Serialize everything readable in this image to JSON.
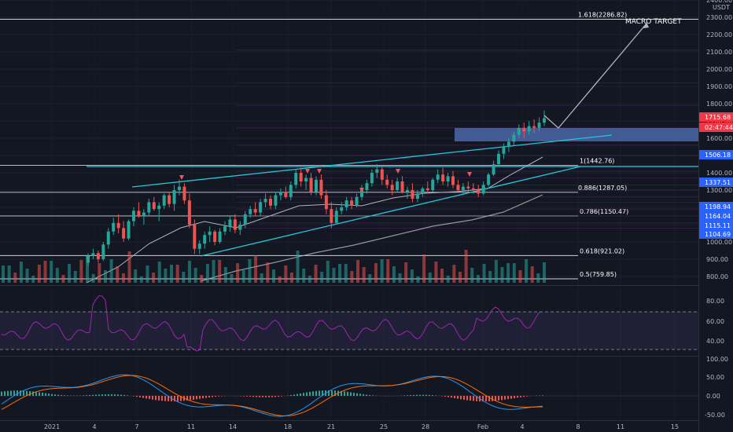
{
  "chart_data": {
    "type": "candlestick",
    "quote_unit": "USDT",
    "price_axis": {
      "ticks": [
        2400,
        2300,
        2200,
        2100,
        2000,
        1900,
        1800,
        1700,
        1600,
        1500,
        1400,
        1300,
        1200,
        1100,
        1000,
        900,
        800
      ],
      "labels": [
        "2400.00",
        "2300.00",
        "2200.00",
        "2100.00",
        "2000.00",
        "1900.00",
        "1800.00",
        "1700.00",
        "1600.00",
        "1500.00",
        "1400.00",
        "1300.00",
        "1200.00",
        "1100.00",
        "1000.00",
        "900.00",
        "800.00"
      ],
      "range": [
        780,
        2400
      ]
    },
    "price_tags": [
      {
        "value": 1715.68,
        "label": "1715.68",
        "color": "#f23645"
      },
      {
        "value": 1680,
        "label": "02:47:44",
        "color": "#f23645"
      },
      {
        "value": 1506.18,
        "label": "1506.18",
        "color": "#2962ff"
      },
      {
        "value": 1337.51,
        "label": "1337.51",
        "color": "#2962ff"
      },
      {
        "value": 1198.94,
        "label": "1198.94",
        "color": "#2962ff"
      },
      {
        "value": 1164.04,
        "label": "1164.04",
        "color": "#2962ff"
      },
      {
        "value": 1115.11,
        "label": "1115.11",
        "color": "#2962ff"
      },
      {
        "value": 1104.69,
        "label": "1104.69",
        "color": "#2962ff"
      }
    ],
    "time_axis": {
      "labels": [
        "2021",
        "4",
        "7",
        "11",
        "14",
        "18",
        "21",
        "25",
        "28",
        "Feb",
        "4",
        "8",
        "11",
        "15"
      ]
    },
    "fib_levels": [
      {
        "label": "1.618(2286.82)",
        "value": 2286.82,
        "style": "white"
      },
      {
        "label": "1(1442.76)",
        "value": 1442.76,
        "style": "white"
      },
      {
        "label": "0.886(1287.05)",
        "value": 1287.05,
        "style": "white"
      },
      {
        "label": "0.786(1150.47)",
        "value": 1150.47,
        "style": "white"
      },
      {
        "label": "0.618(921.02)",
        "value": 921.02,
        "style": "white"
      },
      {
        "label": "0.5(759.85)",
        "value": 759.85,
        "style": "white"
      }
    ],
    "annotation": "MACRO TARGET",
    "ohlc": [
      [
        880,
        935,
        860,
        920
      ],
      [
        920,
        960,
        900,
        935
      ],
      [
        935,
        950,
        880,
        900
      ],
      [
        900,
        1000,
        890,
        985
      ],
      [
        985,
        1080,
        960,
        1060
      ],
      [
        1060,
        1140,
        1040,
        1110
      ],
      [
        1110,
        1160,
        1050,
        1080
      ],
      [
        1080,
        1120,
        1000,
        1020
      ],
      [
        1020,
        1130,
        1010,
        1120
      ],
      [
        1120,
        1200,
        1090,
        1180
      ],
      [
        1180,
        1230,
        1140,
        1150
      ],
      [
        1150,
        1190,
        1100,
        1170
      ],
      [
        1170,
        1250,
        1150,
        1230
      ],
      [
        1230,
        1260,
        1180,
        1190
      ],
      [
        1190,
        1230,
        1120,
        1210
      ],
      [
        1210,
        1280,
        1190,
        1270
      ],
      [
        1270,
        1290,
        1200,
        1220
      ],
      [
        1220,
        1330,
        1180,
        1300
      ],
      [
        1300,
        1360,
        1270,
        1320
      ],
      [
        1320,
        1340,
        1220,
        1240
      ],
      [
        1240,
        1280,
        1080,
        1100
      ],
      [
        1100,
        1130,
        930,
        960
      ],
      [
        960,
        1010,
        930,
        990
      ],
      [
        990,
        1060,
        960,
        1040
      ],
      [
        1040,
        1090,
        1000,
        1060
      ],
      [
        1060,
        1070,
        980,
        1000
      ],
      [
        1000,
        1080,
        990,
        1060
      ],
      [
        1060,
        1120,
        1040,
        1090
      ],
      [
        1090,
        1150,
        1060,
        1130
      ],
      [
        1130,
        1160,
        1050,
        1070
      ],
      [
        1070,
        1120,
        1040,
        1100
      ],
      [
        1100,
        1180,
        1080,
        1160
      ],
      [
        1160,
        1210,
        1140,
        1190
      ],
      [
        1190,
        1230,
        1150,
        1170
      ],
      [
        1170,
        1250,
        1150,
        1230
      ],
      [
        1230,
        1280,
        1200,
        1250
      ],
      [
        1250,
        1270,
        1190,
        1210
      ],
      [
        1210,
        1290,
        1190,
        1270
      ],
      [
        1270,
        1310,
        1240,
        1290
      ],
      [
        1290,
        1320,
        1250,
        1260
      ],
      [
        1260,
        1350,
        1240,
        1330
      ],
      [
        1330,
        1420,
        1310,
        1400
      ],
      [
        1400,
        1430,
        1320,
        1350
      ],
      [
        1350,
        1390,
        1300,
        1370
      ],
      [
        1370,
        1400,
        1270,
        1290
      ],
      [
        1290,
        1380,
        1270,
        1360
      ],
      [
        1360,
        1390,
        1250,
        1270
      ],
      [
        1270,
        1300,
        1160,
        1190
      ],
      [
        1190,
        1230,
        1080,
        1110
      ],
      [
        1110,
        1200,
        1100,
        1180
      ],
      [
        1180,
        1230,
        1160,
        1200
      ],
      [
        1200,
        1260,
        1180,
        1240
      ],
      [
        1240,
        1260,
        1190,
        1210
      ],
      [
        1210,
        1280,
        1200,
        1260
      ],
      [
        1260,
        1330,
        1240,
        1300
      ],
      [
        1300,
        1360,
        1280,
        1340
      ],
      [
        1340,
        1420,
        1320,
        1400
      ],
      [
        1400,
        1450,
        1370,
        1420
      ],
      [
        1420,
        1440,
        1330,
        1360
      ],
      [
        1360,
        1390,
        1310,
        1330
      ],
      [
        1330,
        1360,
        1270,
        1300
      ],
      [
        1300,
        1370,
        1290,
        1350
      ],
      [
        1350,
        1380,
        1280,
        1290
      ],
      [
        1290,
        1320,
        1250,
        1300
      ],
      [
        1300,
        1340,
        1230,
        1250
      ],
      [
        1250,
        1300,
        1230,
        1280
      ],
      [
        1280,
        1320,
        1260,
        1310
      ],
      [
        1310,
        1350,
        1280,
        1300
      ],
      [
        1300,
        1370,
        1290,
        1360
      ],
      [
        1360,
        1420,
        1340,
        1390
      ],
      [
        1390,
        1430,
        1330,
        1350
      ],
      [
        1350,
        1400,
        1320,
        1380
      ],
      [
        1380,
        1410,
        1310,
        1330
      ],
      [
        1330,
        1360,
        1290,
        1300
      ],
      [
        1300,
        1340,
        1270,
        1320
      ],
      [
        1320,
        1350,
        1290,
        1310
      ],
      [
        1310,
        1340,
        1280,
        1300
      ],
      [
        1300,
        1330,
        1260,
        1280
      ],
      [
        1280,
        1350,
        1270,
        1330
      ],
      [
        1330,
        1400,
        1320,
        1390
      ],
      [
        1390,
        1470,
        1380,
        1450
      ],
      [
        1450,
        1530,
        1440,
        1510
      ],
      [
        1510,
        1570,
        1480,
        1550
      ],
      [
        1550,
        1600,
        1520,
        1580
      ],
      [
        1580,
        1640,
        1560,
        1620
      ],
      [
        1620,
        1680,
        1600,
        1660
      ],
      [
        1660,
        1690,
        1600,
        1640
      ],
      [
        1640,
        1700,
        1620,
        1670
      ],
      [
        1670,
        1710,
        1630,
        1660
      ],
      [
        1660,
        1720,
        1640,
        1690
      ],
      [
        1690,
        1760,
        1670,
        1715.68
      ]
    ]
  }
}
